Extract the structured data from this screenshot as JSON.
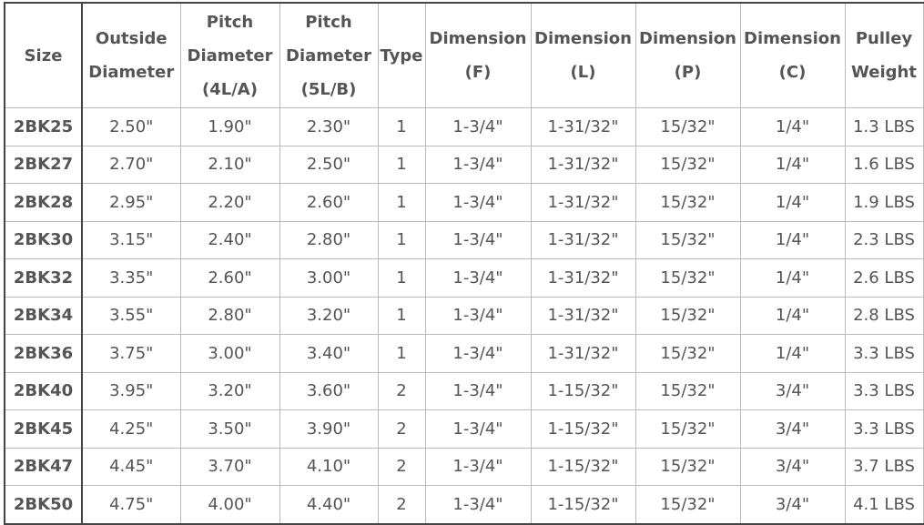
{
  "table": {
    "headers": [
      [
        "Size"
      ],
      [
        "Outside",
        "Diameter"
      ],
      [
        "Pitch",
        "Diameter",
        "(4L/A)"
      ],
      [
        "Pitch",
        "Diameter",
        "(5L/B)"
      ],
      [
        "Type"
      ],
      [
        "Dimension",
        "(F)"
      ],
      [
        "Dimension",
        "(L)"
      ],
      [
        "Dimension",
        "(P)"
      ],
      [
        "Dimension",
        "(C)"
      ],
      [
        "Pulley",
        "Weight"
      ]
    ],
    "rows": [
      [
        "2BK25",
        "2.50\"",
        "1.90\"",
        "2.30\"",
        "1",
        "1-3/4\"",
        "1-31/32\"",
        "15/32\"",
        "1/4\"",
        "1.3 LBS"
      ],
      [
        "2BK27",
        "2.70\"",
        "2.10\"",
        "2.50\"",
        "1",
        "1-3/4\"",
        "1-31/32\"",
        "15/32\"",
        "1/4\"",
        "1.6 LBS"
      ],
      [
        "2BK28",
        "2.95\"",
        "2.20\"",
        "2.60\"",
        "1",
        "1-3/4\"",
        "1-31/32\"",
        "15/32\"",
        "1/4\"",
        "1.9 LBS"
      ],
      [
        "2BK30",
        "3.15\"",
        "2.40\"",
        "2.80\"",
        "1",
        "1-3/4\"",
        "1-31/32\"",
        "15/32\"",
        "1/4\"",
        "2.3 LBS"
      ],
      [
        "2BK32",
        "3.35\"",
        "2.60\"",
        "3.00\"",
        "1",
        "1-3/4\"",
        "1-31/32\"",
        "15/32\"",
        "1/4\"",
        "2.6 LBS"
      ],
      [
        "2BK34",
        "3.55\"",
        "2.80\"",
        "3.20\"",
        "1",
        "1-3/4\"",
        "1-31/32\"",
        "15/32\"",
        "1/4\"",
        "2.8 LBS"
      ],
      [
        "2BK36",
        "3.75\"",
        "3.00\"",
        "3.40\"",
        "1",
        "1-3/4\"",
        "1-31/32\"",
        "15/32\"",
        "1/4\"",
        "3.3 LBS"
      ],
      [
        "2BK40",
        "3.95\"",
        "3.20\"",
        "3.60\"",
        "2",
        "1-3/4\"",
        "1-15/32\"",
        "15/32\"",
        "3/4\"",
        "3.3 LBS"
      ],
      [
        "2BK45",
        "4.25\"",
        "3.50\"",
        "3.90\"",
        "2",
        "1-3/4\"",
        "1-15/32\"",
        "15/32\"",
        "3/4\"",
        "3.3 LBS"
      ],
      [
        "2BK47",
        "4.45\"",
        "3.70\"",
        "4.10\"",
        "2",
        "1-3/4\"",
        "1-15/32\"",
        "15/32\"",
        "3/4\"",
        "3.7 LBS"
      ],
      [
        "2BK50",
        "4.75\"",
        "4.00\"",
        "4.40\"",
        "2",
        "1-3/4\"",
        "1-15/32\"",
        "15/32\"",
        "3/4\"",
        "4.1 LBS"
      ]
    ]
  }
}
